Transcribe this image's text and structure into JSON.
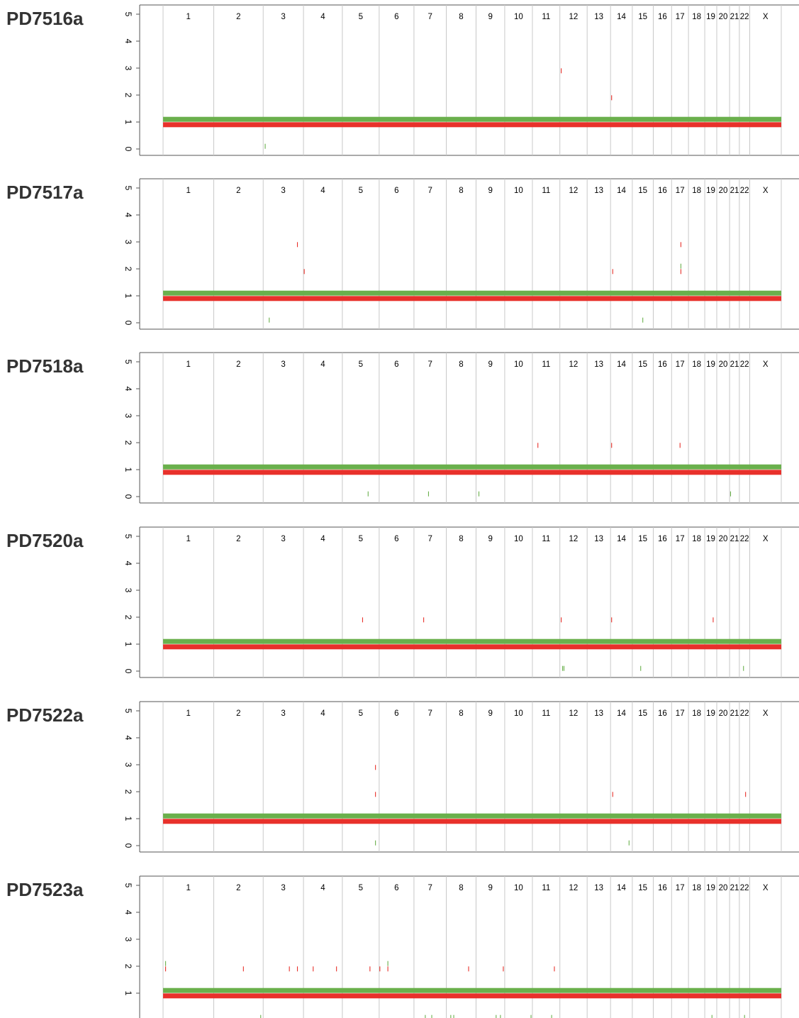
{
  "chart_data": {
    "type": "copy-number segment plot",
    "y_ticks": [
      "0",
      "1",
      "2",
      "3",
      "4",
      "5"
    ],
    "ylim": [
      0,
      5
    ],
    "chromosomes": [
      "1",
      "2",
      "3",
      "4",
      "5",
      "6",
      "7",
      "8",
      "9",
      "10",
      "11",
      "12",
      "13",
      "14",
      "15",
      "16",
      "17",
      "18",
      "19",
      "20",
      "21",
      "22",
      "X"
    ],
    "colors": {
      "major_allele": "#6ab04c",
      "minor_allele": "#e8312b",
      "boundary": "#c8c8c8",
      "axis": "#555555"
    },
    "major_cn": 1.1,
    "minor_cn": 0.9,
    "panels": [
      {
        "sample": "PD7516a",
        "events": [
          {
            "chrom": "12",
            "pos": 0.05,
            "cn": 2.9,
            "color": "red"
          },
          {
            "chrom": "14",
            "pos": 0.05,
            "cn": 1.9,
            "color": "red"
          },
          {
            "chrom": "3",
            "pos": 0.05,
            "cn": 0.1,
            "color": "green"
          }
        ]
      },
      {
        "sample": "PD7517a",
        "events": [
          {
            "chrom": "3",
            "pos": 0.85,
            "cn": 2.9,
            "color": "red"
          },
          {
            "chrom": "4",
            "pos": 0.02,
            "cn": 1.9,
            "color": "red"
          },
          {
            "chrom": "3",
            "pos": 0.15,
            "cn": 0.1,
            "color": "green"
          },
          {
            "chrom": "14",
            "pos": 0.1,
            "cn": 1.9,
            "color": "red"
          },
          {
            "chrom": "15",
            "pos": 0.5,
            "cn": 0.1,
            "color": "green"
          },
          {
            "chrom": "17",
            "pos": 0.55,
            "cn": 2.9,
            "color": "red"
          },
          {
            "chrom": "17",
            "pos": 0.55,
            "cn": 2.1,
            "color": "green"
          },
          {
            "chrom": "17",
            "pos": 0.55,
            "cn": 1.9,
            "color": "red"
          }
        ]
      },
      {
        "sample": "PD7518a",
        "events": [
          {
            "chrom": "11",
            "pos": 0.2,
            "cn": 1.9,
            "color": "red"
          },
          {
            "chrom": "14",
            "pos": 0.05,
            "cn": 1.9,
            "color": "red"
          },
          {
            "chrom": "17",
            "pos": 0.5,
            "cn": 1.9,
            "color": "red"
          },
          {
            "chrom": "5",
            "pos": 0.7,
            "cn": 0.1,
            "color": "green"
          },
          {
            "chrom": "7",
            "pos": 0.45,
            "cn": 0.1,
            "color": "green"
          },
          {
            "chrom": "9",
            "pos": 0.1,
            "cn": 0.1,
            "color": "green"
          },
          {
            "chrom": "21",
            "pos": 0.1,
            "cn": 0.1,
            "color": "green"
          }
        ]
      },
      {
        "sample": "PD7520a",
        "events": [
          {
            "chrom": "5",
            "pos": 0.55,
            "cn": 1.9,
            "color": "red"
          },
          {
            "chrom": "7",
            "pos": 0.3,
            "cn": 1.9,
            "color": "red"
          },
          {
            "chrom": "12",
            "pos": 0.05,
            "cn": 1.9,
            "color": "red"
          },
          {
            "chrom": "14",
            "pos": 0.05,
            "cn": 1.9,
            "color": "red"
          },
          {
            "chrom": "19",
            "pos": 0.7,
            "cn": 1.9,
            "color": "red"
          },
          {
            "chrom": "12",
            "pos": 0.1,
            "cn": 0.1,
            "color": "green"
          },
          {
            "chrom": "12",
            "pos": 0.15,
            "cn": 0.1,
            "color": "green"
          },
          {
            "chrom": "15",
            "pos": 0.4,
            "cn": 0.1,
            "color": "green"
          },
          {
            "chrom": "22",
            "pos": 0.4,
            "cn": 0.1,
            "color": "green"
          }
        ]
      },
      {
        "sample": "PD7522a",
        "events": [
          {
            "chrom": "5",
            "pos": 0.9,
            "cn": 2.9,
            "color": "red"
          },
          {
            "chrom": "5",
            "pos": 0.9,
            "cn": 1.9,
            "color": "red"
          },
          {
            "chrom": "5",
            "pos": 0.9,
            "cn": 0.1,
            "color": "green"
          },
          {
            "chrom": "14",
            "pos": 0.1,
            "cn": 1.9,
            "color": "red"
          },
          {
            "chrom": "14",
            "pos": 0.85,
            "cn": 0.1,
            "color": "green"
          },
          {
            "chrom": "22",
            "pos": 0.6,
            "cn": 1.9,
            "color": "red"
          }
        ]
      },
      {
        "sample": "PD7523a",
        "events": [
          {
            "chrom": "1",
            "pos": 0.05,
            "cn": 1.9,
            "color": "red"
          },
          {
            "chrom": "1",
            "pos": 0.05,
            "cn": 2.1,
            "color": "green"
          },
          {
            "chrom": "2",
            "pos": 0.6,
            "cn": 1.9,
            "color": "red"
          },
          {
            "chrom": "3",
            "pos": 0.65,
            "cn": 1.9,
            "color": "red"
          },
          {
            "chrom": "3",
            "pos": 0.85,
            "cn": 1.9,
            "color": "red"
          },
          {
            "chrom": "4",
            "pos": 0.25,
            "cn": 1.9,
            "color": "red"
          },
          {
            "chrom": "4",
            "pos": 0.85,
            "cn": 1.9,
            "color": "red"
          },
          {
            "chrom": "5",
            "pos": 0.75,
            "cn": 1.9,
            "color": "red"
          },
          {
            "chrom": "6",
            "pos": 0.02,
            "cn": 1.9,
            "color": "red"
          },
          {
            "chrom": "6",
            "pos": 0.25,
            "cn": 1.9,
            "color": "red"
          },
          {
            "chrom": "6",
            "pos": 0.25,
            "cn": 2.1,
            "color": "green"
          },
          {
            "chrom": "8",
            "pos": 0.75,
            "cn": 1.9,
            "color": "red"
          },
          {
            "chrom": "9",
            "pos": 0.95,
            "cn": 1.9,
            "color": "red"
          },
          {
            "chrom": "11",
            "pos": 0.8,
            "cn": 1.9,
            "color": "red"
          },
          {
            "chrom": "2",
            "pos": 0.95,
            "cn": 0.1,
            "color": "green"
          },
          {
            "chrom": "7",
            "pos": 0.35,
            "cn": 0.1,
            "color": "green"
          },
          {
            "chrom": "7",
            "pos": 0.55,
            "cn": 0.1,
            "color": "green"
          },
          {
            "chrom": "8",
            "pos": 0.15,
            "cn": 0.1,
            "color": "green"
          },
          {
            "chrom": "8",
            "pos": 0.25,
            "cn": 0.1,
            "color": "green"
          },
          {
            "chrom": "9",
            "pos": 0.7,
            "cn": 0.1,
            "color": "green"
          },
          {
            "chrom": "9",
            "pos": 0.85,
            "cn": 0.1,
            "color": "green"
          },
          {
            "chrom": "10",
            "pos": 0.95,
            "cn": 0.1,
            "color": "green"
          },
          {
            "chrom": "11",
            "pos": 0.7,
            "cn": 0.1,
            "color": "green"
          },
          {
            "chrom": "19",
            "pos": 0.6,
            "cn": 0.1,
            "color": "green"
          },
          {
            "chrom": "22",
            "pos": 0.5,
            "cn": 0.1,
            "color": "green"
          }
        ]
      }
    ]
  }
}
